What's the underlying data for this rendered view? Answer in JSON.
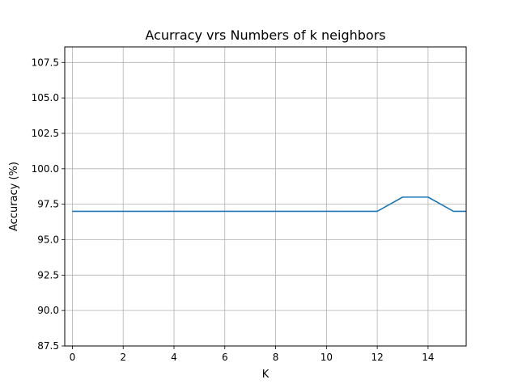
{
  "chart_data": {
    "type": "line",
    "title": "Acurracy vrs Numbers of k neighbors",
    "xlabel": "K",
    "ylabel": "Accuracy (%)",
    "xlim": [
      -0.3,
      15.5
    ],
    "ylim": [
      87.5,
      108.6
    ],
    "xticks": [
      0,
      2,
      4,
      6,
      8,
      10,
      12,
      14
    ],
    "xtick_labels": [
      "0",
      "2",
      "4",
      "6",
      "8",
      "10",
      "12",
      "14"
    ],
    "yticks": [
      87.5,
      90.0,
      92.5,
      95.0,
      97.5,
      100.0,
      102.5,
      105.0,
      107.5
    ],
    "ytick_labels": [
      "87.5",
      "90.0",
      "92.5",
      "95.0",
      "97.5",
      "100.0",
      "102.5",
      "105.0",
      "107.5"
    ],
    "grid": true,
    "series": [
      {
        "color": "#1f77b4",
        "x": [
          0,
          1,
          2,
          3,
          4,
          5,
          6,
          7,
          8,
          9,
          10,
          11,
          12,
          13,
          14,
          15,
          16
        ],
        "values": [
          97,
          97,
          97,
          97,
          97,
          97,
          97,
          97,
          97,
          97,
          97,
          97,
          97,
          98,
          98,
          97,
          97
        ]
      }
    ]
  }
}
